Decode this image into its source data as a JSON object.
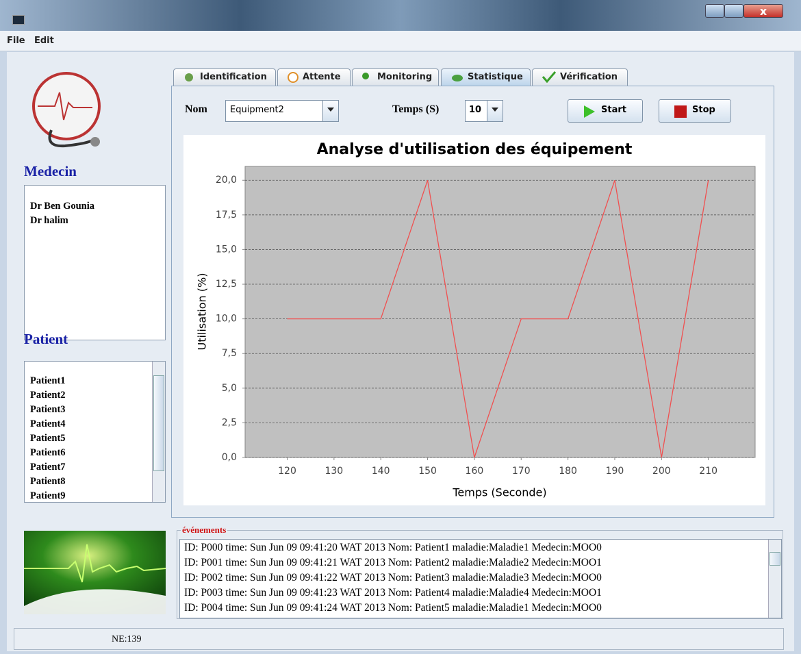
{
  "menu": [
    "File",
    "Edit"
  ],
  "sidebar": {
    "doctors_title": "Medecin",
    "doctors": [
      "Dr Ben Gounia",
      "Dr halim"
    ],
    "patients_title": "Patient",
    "patients": [
      "Patient1",
      "Patient2",
      "Patient3",
      "Patient4",
      "Patient5",
      "Patient6",
      "Patient7",
      "Patient8",
      "Patient9"
    ]
  },
  "tabs": [
    "Identification",
    "Attente",
    "Monitoring",
    "Statistique",
    "Vérification"
  ],
  "controls": {
    "name_label": "Nom",
    "equipment": "Equipment2",
    "time_label": "Temps (S)",
    "time_value": "10",
    "start": "Start",
    "stop": "Stop"
  },
  "chart_data": {
    "type": "line",
    "title": "Analyse d'utilisation des équipement",
    "x_label": "Temps (Seconde)",
    "y_label": "Utilisation (%)",
    "x": [
      120,
      130,
      140,
      150,
      160,
      170,
      180,
      190,
      200,
      210
    ],
    "values": [
      10,
      10,
      10,
      20,
      0,
      10,
      10,
      20,
      0,
      20
    ],
    "color": "#f05050",
    "xlim": [
      111,
      220
    ],
    "ylim": [
      0,
      21
    ],
    "xticks": [
      120,
      130,
      140,
      150,
      160,
      170,
      180,
      190,
      200,
      210
    ],
    "yticks": [
      {
        "value": 0,
        "label": "0,0"
      },
      {
        "value": 2.5,
        "label": "2,5"
      },
      {
        "value": 5,
        "label": "5,0"
      },
      {
        "value": 7.5,
        "label": "7,5"
      },
      {
        "value": 10,
        "label": "10,0"
      },
      {
        "value": 12.5,
        "label": "12,5"
      },
      {
        "value": 15,
        "label": "15,0"
      },
      {
        "value": 17.5,
        "label": "17,5"
      },
      {
        "value": 20,
        "label": "20,0"
      }
    ],
    "grid": true
  },
  "events": {
    "title": "événements",
    "lines": [
      "ID: P000 time: Sun Jun 09 09:41:20 WAT 2013 Nom: Patient1 maladie:Maladie1 Medecin:MOO0",
      "ID: P001 time: Sun Jun 09 09:41:21 WAT 2013 Nom: Patient2 maladie:Maladie2 Medecin:MOO1",
      "ID: P002 time: Sun Jun 09 09:41:22 WAT 2013 Nom: Patient3 maladie:Maladie3 Medecin:MOO0",
      "ID: P003 time: Sun Jun 09 09:41:23 WAT 2013 Nom: Patient4 maladie:Maladie4 Medecin:MOO1",
      "ID: P004 time: Sun Jun 09 09:41:24 WAT 2013 Nom: Patient5 maladie:Maladie1 Medecin:MOO0"
    ]
  },
  "status": "NE:139"
}
